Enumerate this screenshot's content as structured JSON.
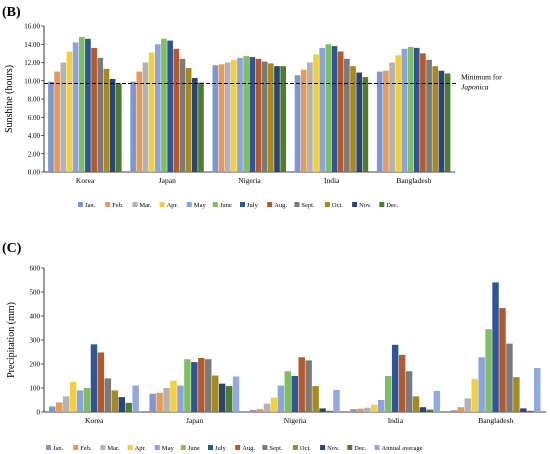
{
  "chart_data": [
    {
      "type": "bar",
      "panel_label": "(B)",
      "ylabel": "Sunshine (hours)",
      "ylim": [
        0,
        16
      ],
      "yticks": [
        "0.00",
        "2.00",
        "4.00",
        "6.00",
        "8.00",
        "10.00",
        "12.00",
        "14.00",
        "16.00"
      ],
      "categories": [
        "Korea",
        "Japan",
        "Nigeria",
        "India",
        "Bangladesh"
      ],
      "series": [
        {
          "name": "Jan.",
          "color": "#7f97cf",
          "values": [
            9.9,
            9.9,
            11.7,
            10.6,
            11.0
          ]
        },
        {
          "name": "Feb.",
          "color": "#e59a5a",
          "values": [
            11.0,
            11.0,
            11.8,
            11.2,
            11.1
          ]
        },
        {
          "name": "Mar.",
          "color": "#b3b3b3",
          "values": [
            12.0,
            12.0,
            12.0,
            12.0,
            12.0
          ]
        },
        {
          "name": "Apr.",
          "color": "#f2cf3c",
          "values": [
            13.2,
            13.1,
            12.3,
            12.9,
            12.8
          ]
        },
        {
          "name": "May",
          "color": "#8aa5dd",
          "values": [
            14.2,
            14.0,
            12.5,
            13.6,
            13.5
          ]
        },
        {
          "name": "June",
          "color": "#7fbf62",
          "values": [
            14.8,
            14.6,
            12.7,
            14.0,
            13.7
          ]
        },
        {
          "name": "July",
          "color": "#2f5597",
          "values": [
            14.6,
            14.4,
            12.6,
            13.8,
            13.6
          ]
        },
        {
          "name": "Aug.",
          "color": "#b5582a",
          "values": [
            13.6,
            13.5,
            12.4,
            13.2,
            13.0
          ]
        },
        {
          "name": "Sept.",
          "color": "#7a7a7a",
          "values": [
            12.5,
            12.4,
            12.1,
            12.4,
            12.3
          ]
        },
        {
          "name": "Oct.",
          "color": "#a68a1f",
          "values": [
            11.3,
            11.4,
            11.9,
            11.6,
            11.6
          ]
        },
        {
          "name": "Nov.",
          "color": "#2a4475",
          "values": [
            10.2,
            10.3,
            11.6,
            10.9,
            11.1
          ]
        },
        {
          "name": "Dec.",
          "color": "#4e7d31",
          "values": [
            9.7,
            9.8,
            11.6,
            10.4,
            10.8
          ]
        }
      ],
      "reference_line": {
        "value": 9.7,
        "label_1": "Minimum for",
        "label_2": "Japonica"
      }
    },
    {
      "type": "bar",
      "panel_label": "(C)",
      "ylabel": "Precipitation  (mm)",
      "ylim": [
        0,
        600
      ],
      "yticks": [
        "0",
        "100",
        "200",
        "300",
        "400",
        "500",
        "600"
      ],
      "categories": [
        "Korea",
        "Japan",
        "Nigeria",
        "India",
        "Bangladesh"
      ],
      "series": [
        {
          "name": "Jan.",
          "color": "#7f97cf",
          "values": [
            23,
            76,
            8,
            12,
            7
          ]
        },
        {
          "name": "Feb.",
          "color": "#e59a5a",
          "values": [
            40,
            80,
            12,
            14,
            20
          ]
        },
        {
          "name": "Mar.",
          "color": "#b3b3b3",
          "values": [
            65,
            100,
            35,
            18,
            57
          ]
        },
        {
          "name": "Apr.",
          "color": "#f2cf3c",
          "values": [
            125,
            130,
            60,
            30,
            138
          ]
        },
        {
          "name": "May",
          "color": "#8aa5dd",
          "values": [
            90,
            110,
            110,
            50,
            228
          ]
        },
        {
          "name": "June",
          "color": "#7fbf62",
          "values": [
            100,
            220,
            170,
            150,
            345
          ]
        },
        {
          "name": "July",
          "color": "#2f5597",
          "values": [
            282,
            208,
            150,
            280,
            540
          ]
        },
        {
          "name": "Aug.",
          "color": "#b5582a",
          "values": [
            248,
            225,
            228,
            238,
            433
          ]
        },
        {
          "name": "Sept.",
          "color": "#7a7a7a",
          "values": [
            140,
            220,
            215,
            170,
            285
          ]
        },
        {
          "name": "Oct.",
          "color": "#a68a1f",
          "values": [
            90,
            152,
            108,
            65,
            145
          ]
        },
        {
          "name": "Nov.",
          "color": "#2a4475",
          "values": [
            62,
            118,
            15,
            20,
            15
          ]
        },
        {
          "name": "Dec.",
          "color": "#4e7d31",
          "values": [
            38,
            108,
            5,
            10,
            5
          ]
        },
        {
          "name": "Annual average",
          "color": "#8faadc",
          "values": [
            110,
            148,
            92,
            88,
            183
          ]
        }
      ]
    }
  ]
}
